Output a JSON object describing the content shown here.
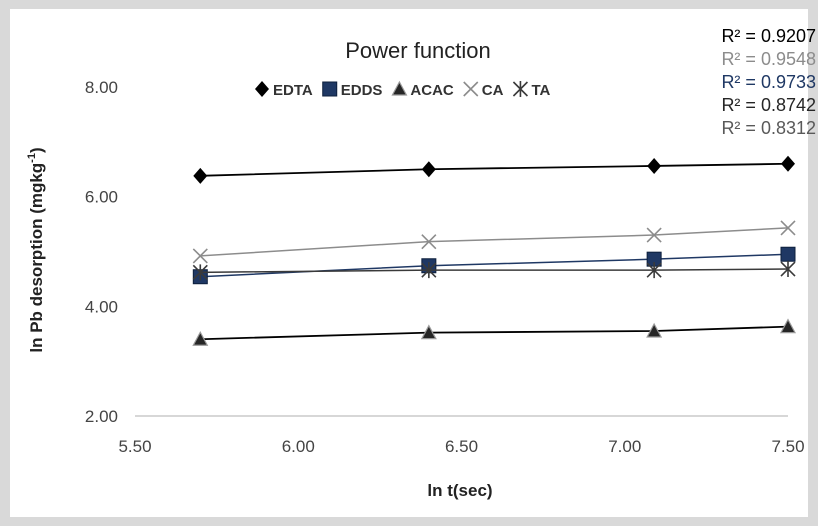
{
  "chart_data": {
    "type": "scatter",
    "title": "Power function",
    "xlabel": "ln t(sec)",
    "ylabel": "ln Pb desorption (mgkg",
    "ylabel_sup": "-1",
    "ylabel_end": ")",
    "xlim": [
      5.5,
      7.5
    ],
    "ylim": [
      2.0,
      8.0
    ],
    "xticks": [
      "5.50",
      "6.00",
      "6.50",
      "7.00",
      "7.50"
    ],
    "yticks": [
      "2.00",
      "4.00",
      "6.00",
      "8.00"
    ],
    "x": [
      5.7,
      6.4,
      7.09,
      7.5
    ],
    "grid": false,
    "legend_position": "top",
    "series": [
      {
        "name": "EDTA",
        "marker": "diamond",
        "color": "#000000",
        "line_color": "#000000",
        "values": [
          6.38,
          6.5,
          6.56,
          6.6
        ]
      },
      {
        "name": "EDDS",
        "marker": "square",
        "color": "#1f3864",
        "line_color": "#1f3864",
        "values": [
          4.54,
          4.74,
          4.86,
          4.95
        ]
      },
      {
        "name": "ACAC",
        "marker": "triangle",
        "color": "#262626",
        "line_color": "#000000",
        "values": [
          3.4,
          3.52,
          3.55,
          3.63
        ]
      },
      {
        "name": "CA",
        "marker": "x",
        "color": "#8c8c8c",
        "line_color": "#8c8c8c",
        "values": [
          4.92,
          5.18,
          5.3,
          5.43
        ]
      },
      {
        "name": "TA",
        "marker": "star",
        "color": "#3a3a3a",
        "line_color": "#3a3a3a",
        "values": [
          4.62,
          4.66,
          4.66,
          4.68
        ]
      }
    ],
    "trendline_r2": [
      {
        "text": "R² = 0.9207",
        "color": "#000000"
      },
      {
        "text": "R² = 0.9548",
        "color": "#8c8c8c"
      },
      {
        "text": "R² = 0.9733",
        "color": "#1f3864"
      },
      {
        "text": "R² = 0.8742",
        "color": "#262626"
      },
      {
        "text": "R² = 0.8312",
        "color": "#595959"
      }
    ]
  }
}
